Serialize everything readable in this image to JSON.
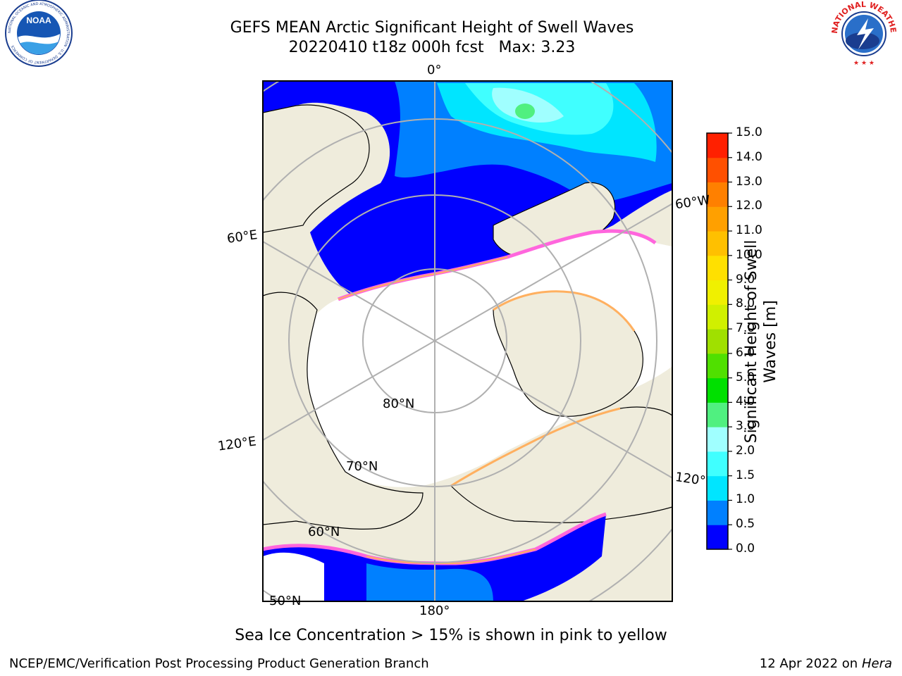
{
  "header": {
    "title_line1": "GEFS MEAN Arctic Significant Height of Swell Waves",
    "title_line2": "20220410 t18z 000h fcst   Max: 3.23"
  },
  "logos": {
    "noara_text": "NOAA",
    "noaa_ring_text": "NATIONAL OCEANIC AND ATMOSPHERIC ADMINISTRATION · U.S. DEPARTMENT OF COMMERCE",
    "nws_ring_text": "NATIONAL WEATHER SERVICE"
  },
  "map": {
    "lon_labels": {
      "top": "0°",
      "left_upper": "60°E",
      "left_lower": "120°E",
      "bottom": "180°",
      "right_upper": "60°W",
      "right_lower": "120°"
    },
    "lat_labels": {
      "l80": "80°N",
      "l70": "70°N",
      "l60": "60°N",
      "l50": "50°N"
    },
    "colors": {
      "land": "#efecdc",
      "ice_white": "#ffffff",
      "grid": "#b0b0b0",
      "ice_edge_pink": "#ff66dd",
      "ice_edge_orange": "#ffb060"
    }
  },
  "colorbar": {
    "title": "Significant Height of Swell Waves [m]",
    "ticks": [
      "0.0",
      "0.5",
      "1.0",
      "1.5",
      "2.0",
      "3.0",
      "4.0",
      "5.0",
      "6.0",
      "7.0",
      "8.0",
      "9.0",
      "10.0",
      "11.0",
      "12.0",
      "13.0",
      "14.0",
      "15.0"
    ],
    "colors": [
      "#0000ff",
      "#0080ff",
      "#00e5ff",
      "#40ffff",
      "#a0ffff",
      "#50f080",
      "#00e000",
      "#50e000",
      "#a0e000",
      "#d0f000",
      "#f0f000",
      "#ffe000",
      "#ffc000",
      "#ffa000",
      "#ff8000",
      "#ff5000",
      "#ff2000"
    ]
  },
  "caption": "Sea Ice Concentration > 15% is shown in pink to yellow",
  "footer": {
    "left": "NCEP/EMC/Verification Post Processing Product Generation Branch",
    "right_prefix": "12 Apr 2022 on ",
    "right_machine": "Hera"
  }
}
